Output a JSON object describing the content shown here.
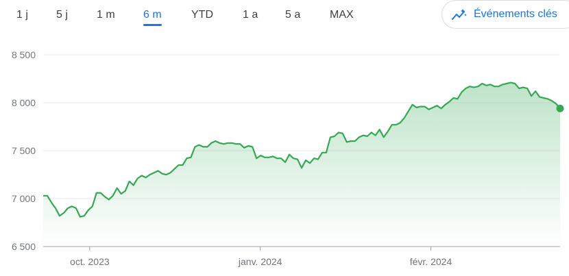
{
  "range_tabs": [
    {
      "label": "1 j",
      "active": false
    },
    {
      "label": "5 j",
      "active": false
    },
    {
      "label": "1 m",
      "active": false
    },
    {
      "label": "6 m",
      "active": true
    },
    {
      "label": "YTD",
      "active": false
    },
    {
      "label": "1 a",
      "active": false
    },
    {
      "label": "5 a",
      "active": false
    },
    {
      "label": "MAX",
      "active": false
    }
  ],
  "key_events_button": {
    "label": "Événements clés",
    "icon": "trend-sparkle-icon"
  },
  "colors": {
    "line": "#34a853",
    "accent": "#1a73e8",
    "grid": "#e8eaed",
    "axis": "#70757a"
  },
  "chart_data": {
    "type": "area",
    "ylim": [
      6500,
      8500
    ],
    "yticks": [
      6500,
      7000,
      7500,
      8000,
      8500
    ],
    "ytick_labels": [
      "6 500",
      "7 000",
      "7 500",
      "8 000",
      "8 500"
    ],
    "xtick_labels": [
      {
        "label": "oct. 2023",
        "x": 0.09
      },
      {
        "label": "janv. 2024",
        "x": 0.42
      },
      {
        "label": "févr. 2024",
        "x": 0.75
      }
    ],
    "grid": true,
    "series": [
      {
        "values": [
          7030,
          7030,
          6960,
          6900,
          6820,
          6850,
          6900,
          6920,
          6900,
          6810,
          6820,
          6880,
          6920,
          7060,
          7060,
          7020,
          6990,
          7030,
          7110,
          7050,
          7080,
          7180,
          7140,
          7210,
          7240,
          7220,
          7250,
          7270,
          7290,
          7260,
          7250,
          7270,
          7310,
          7350,
          7350,
          7420,
          7430,
          7540,
          7560,
          7540,
          7540,
          7580,
          7600,
          7580,
          7570,
          7580,
          7580,
          7570,
          7570,
          7530,
          7550,
          7540,
          7420,
          7450,
          7430,
          7430,
          7440,
          7420,
          7420,
          7380,
          7460,
          7420,
          7410,
          7320,
          7400,
          7370,
          7420,
          7410,
          7480,
          7480,
          7640,
          7650,
          7690,
          7680,
          7590,
          7600,
          7600,
          7640,
          7660,
          7650,
          7690,
          7660,
          7720,
          7640,
          7700,
          7770,
          7770,
          7790,
          7840,
          7910,
          7980,
          7950,
          7960,
          7960,
          7930,
          7950,
          7970,
          7940,
          7980,
          8010,
          8050,
          8040,
          8110,
          8150,
          8170,
          8160,
          8170,
          8200,
          8180,
          8190,
          8170,
          8170,
          8190,
          8200,
          8210,
          8200,
          8150,
          8160,
          8150,
          8070,
          8120,
          8060,
          8050,
          8040,
          8020,
          7990,
          7940
        ]
      }
    ],
    "last_value": 7940
  }
}
